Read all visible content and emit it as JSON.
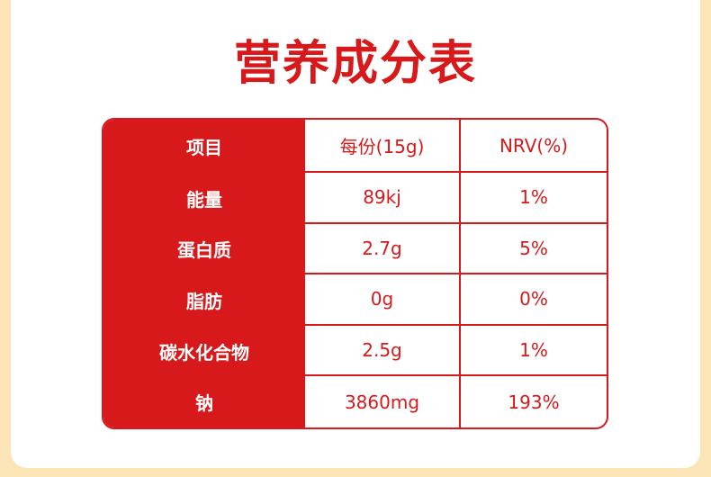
{
  "title": "营养成分表",
  "table": {
    "header": [
      "项目",
      "每份(15g)",
      "NRV(%)"
    ],
    "rows": [
      [
        "能量",
        "89kj",
        "1%"
      ],
      [
        "蛋白质",
        "2.7g",
        "5%"
      ],
      [
        "脂肪",
        "0g",
        "0%"
      ],
      [
        "碳水化合物",
        "2.5g",
        "1%"
      ],
      [
        "钠",
        "3860mg",
        "193%"
      ]
    ]
  }
}
